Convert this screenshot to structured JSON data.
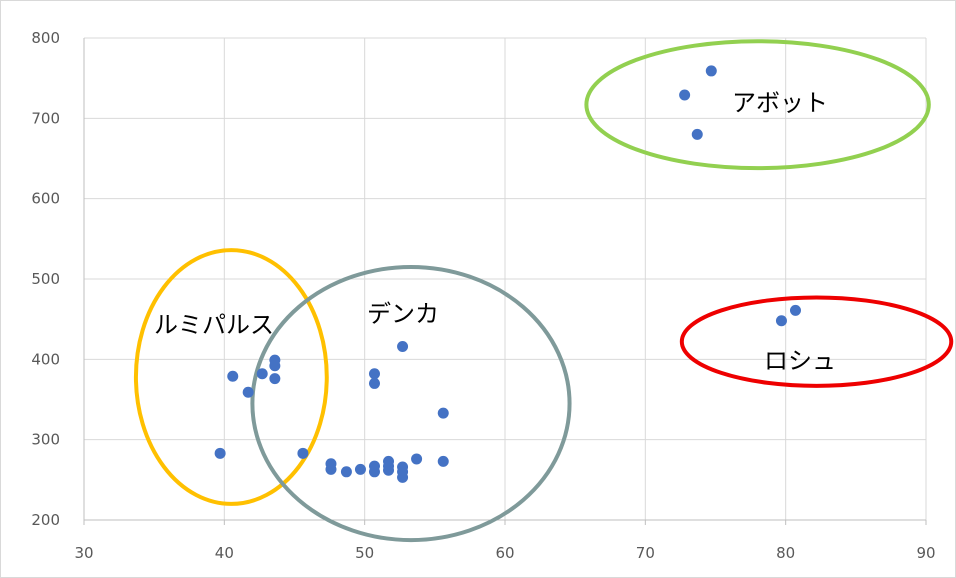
{
  "chart_data": {
    "type": "scatter",
    "title": "",
    "xlabel": "",
    "ylabel": "",
    "xlim": [
      30,
      90
    ],
    "ylim": [
      200,
      800
    ],
    "xticks": [
      30,
      40,
      50,
      60,
      70,
      80,
      90
    ],
    "yticks": [
      200,
      300,
      400,
      500,
      600,
      700,
      800
    ],
    "grid": "vertical and horizontal",
    "marker_color": "#4472c4",
    "points": [
      {
        "x": 39.7,
        "y": 283
      },
      {
        "x": 40.6,
        "y": 379
      },
      {
        "x": 41.7,
        "y": 359
      },
      {
        "x": 42.7,
        "y": 382
      },
      {
        "x": 43.6,
        "y": 399
      },
      {
        "x": 43.6,
        "y": 392
      },
      {
        "x": 43.6,
        "y": 376
      },
      {
        "x": 45.6,
        "y": 283
      },
      {
        "x": 47.6,
        "y": 270
      },
      {
        "x": 47.6,
        "y": 263
      },
      {
        "x": 48.7,
        "y": 260
      },
      {
        "x": 49.7,
        "y": 263
      },
      {
        "x": 50.7,
        "y": 382
      },
      {
        "x": 50.7,
        "y": 370
      },
      {
        "x": 50.7,
        "y": 267
      },
      {
        "x": 50.7,
        "y": 260
      },
      {
        "x": 51.7,
        "y": 273
      },
      {
        "x": 51.7,
        "y": 267
      },
      {
        "x": 51.7,
        "y": 262
      },
      {
        "x": 52.7,
        "y": 416
      },
      {
        "x": 52.7,
        "y": 266
      },
      {
        "x": 52.7,
        "y": 260
      },
      {
        "x": 52.7,
        "y": 253
      },
      {
        "x": 53.7,
        "y": 276
      },
      {
        "x": 55.6,
        "y": 333
      },
      {
        "x": 55.6,
        "y": 273
      },
      {
        "x": 72.8,
        "y": 729
      },
      {
        "x": 73.7,
        "y": 680
      },
      {
        "x": 74.7,
        "y": 759
      },
      {
        "x": 79.7,
        "y": 448
      },
      {
        "x": 80.7,
        "y": 461
      }
    ],
    "groups": [
      {
        "label": "ルミパルス",
        "color": "#ffc000",
        "cx": 40.5,
        "cy": 378,
        "rx": 6.8,
        "ry": 158
      },
      {
        "label": "デンカ",
        "color": "#7f9a9a",
        "cx": 53.3,
        "cy": 345,
        "rx": 11.3,
        "ry": 170
      },
      {
        "label": "アボット",
        "color": "#92d050",
        "cx": 78.0,
        "cy": 717,
        "rx": 12.2,
        "ry": 79
      },
      {
        "label": "ロシュ",
        "color": "#ee0000",
        "cx": 82.2,
        "cy": 422,
        "rx": 9.6,
        "ry": 55
      }
    ]
  }
}
